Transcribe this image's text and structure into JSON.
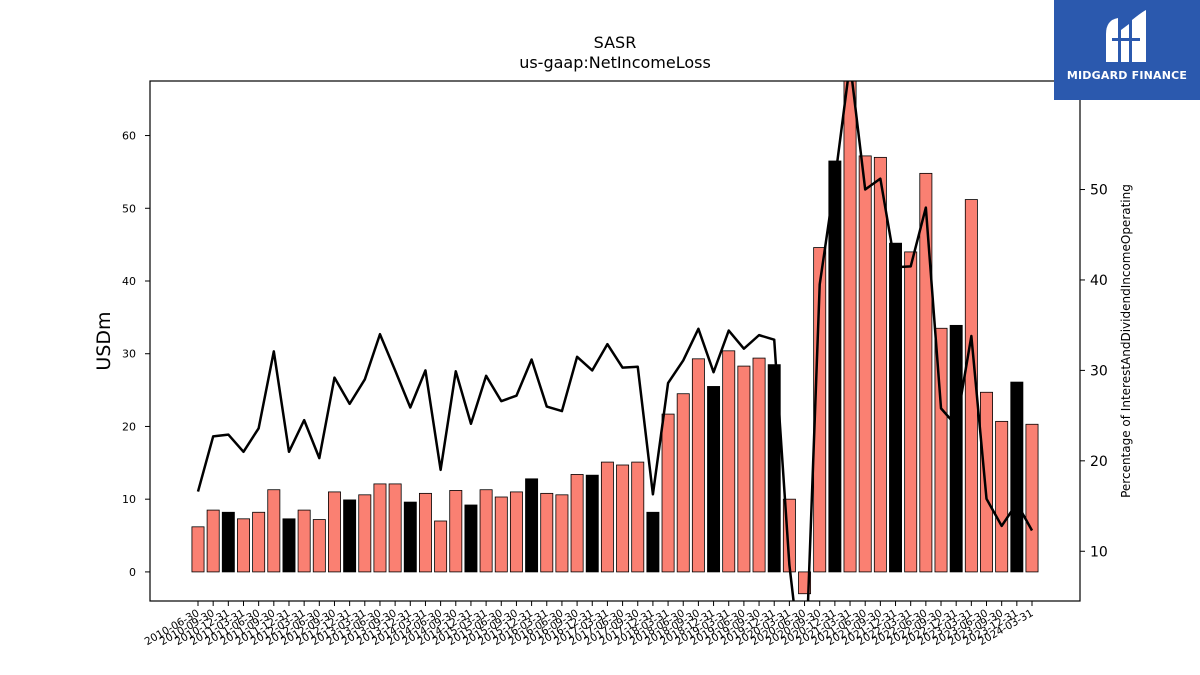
{
  "chart_data": {
    "type": "bar+line",
    "title": "SASR",
    "subtitle": "us-gaap:NetIncomeLoss",
    "ylabel": "USDm",
    "y2label": "Percentage of InterestAndDividendIncomeOperating",
    "ylim": [
      -4,
      67.5
    ],
    "y2lim": [
      4.5,
      62
    ],
    "yticks": [
      0,
      10,
      20,
      30,
      40,
      50,
      60
    ],
    "y2ticks": [
      10,
      20,
      30,
      40,
      50
    ],
    "grid": false,
    "colors": {
      "bar_default": "#fa8072",
      "bar_highlight": "#000000",
      "line": "#000000"
    },
    "categories": [
      "2010-06-30",
      "2010-09-30",
      "2010-12-31",
      "2011-03-31",
      "2011-06-30",
      "2011-09-30",
      "2011-12-31",
      "2012-03-31",
      "2012-06-30",
      "2012-09-30",
      "2012-12-31",
      "2013-03-31",
      "2013-06-30",
      "2013-09-30",
      "2013-12-31",
      "2014-03-31",
      "2014-06-30",
      "2014-09-30",
      "2014-12-31",
      "2015-03-31",
      "2015-06-30",
      "2015-09-30",
      "2015-12-31",
      "2016-03-31",
      "2016-06-30",
      "2016-09-30",
      "2016-12-31",
      "2017-03-31",
      "2017-06-30",
      "2017-09-30",
      "2017-12-31",
      "2018-03-31",
      "2018-06-30",
      "2018-09-30",
      "2018-12-31",
      "2019-03-31",
      "2019-06-30",
      "2019-09-30",
      "2019-12-31",
      "2020-03-31",
      "2020-06-30",
      "2020-09-30",
      "2020-12-31",
      "2021-03-31",
      "2021-06-30",
      "2021-09-30",
      "2021-12-31",
      "2022-03-31",
      "2022-06-30",
      "2022-09-30",
      "2022-12-31",
      "2023-03-31",
      "2023-06-30",
      "2023-09-30",
      "2023-12-31",
      "2024-03-31"
    ],
    "bar_series": {
      "name": "NetIncomeLoss",
      "values": [
        6.2,
        8.5,
        8.2,
        7.3,
        8.2,
        11.3,
        7.3,
        8.5,
        7.2,
        11.0,
        9.9,
        10.6,
        12.1,
        12.1,
        9.6,
        10.8,
        7.0,
        11.2,
        9.2,
        11.3,
        10.3,
        11.0,
        12.8,
        10.8,
        10.6,
        13.4,
        13.3,
        15.1,
        14.7,
        15.1,
        8.2,
        21.7,
        24.5,
        29.3,
        25.5,
        30.4,
        28.3,
        29.4,
        28.5,
        10.0,
        -3.0,
        44.6,
        56.5,
        71.0,
        57.2,
        57.0,
        45.2,
        44.0,
        54.8,
        33.5,
        33.9,
        51.2,
        24.7,
        20.7,
        26.1,
        20.3
      ],
      "highlight": [
        false,
        false,
        true,
        false,
        false,
        false,
        true,
        false,
        false,
        false,
        true,
        false,
        false,
        false,
        true,
        false,
        false,
        false,
        true,
        false,
        false,
        false,
        true,
        false,
        false,
        false,
        true,
        false,
        false,
        false,
        true,
        false,
        false,
        false,
        true,
        false,
        false,
        false,
        true,
        false,
        false,
        false,
        true,
        false,
        false,
        false,
        true,
        false,
        false,
        false,
        true,
        false,
        false,
        false,
        true,
        false
      ]
    },
    "line_series": {
      "name": "Percentage of InterestAndDividendIncomeOperating",
      "values": [
        16.6,
        22.7,
        22.9,
        21.0,
        23.6,
        32.1,
        21.0,
        24.5,
        20.3,
        29.2,
        26.3,
        29.0,
        34.0,
        30.0,
        25.9,
        30.0,
        19.0,
        29.9,
        24.1,
        29.4,
        26.6,
        27.2,
        31.2,
        26.0,
        25.5,
        31.5,
        30.0,
        32.9,
        30.3,
        30.4,
        16.3,
        28.6,
        31.1,
        34.6,
        29.8,
        34.4,
        32.4,
        33.9,
        33.4,
        8.5,
        -6.0,
        39.5,
        51.0,
        64.0,
        50.0,
        51.2,
        41.4,
        41.5,
        48.0,
        25.8,
        23.9,
        33.8,
        15.8,
        12.8,
        15.3,
        12.3
      ]
    }
  },
  "logo": {
    "text": "MIDGARD FINANCE"
  }
}
